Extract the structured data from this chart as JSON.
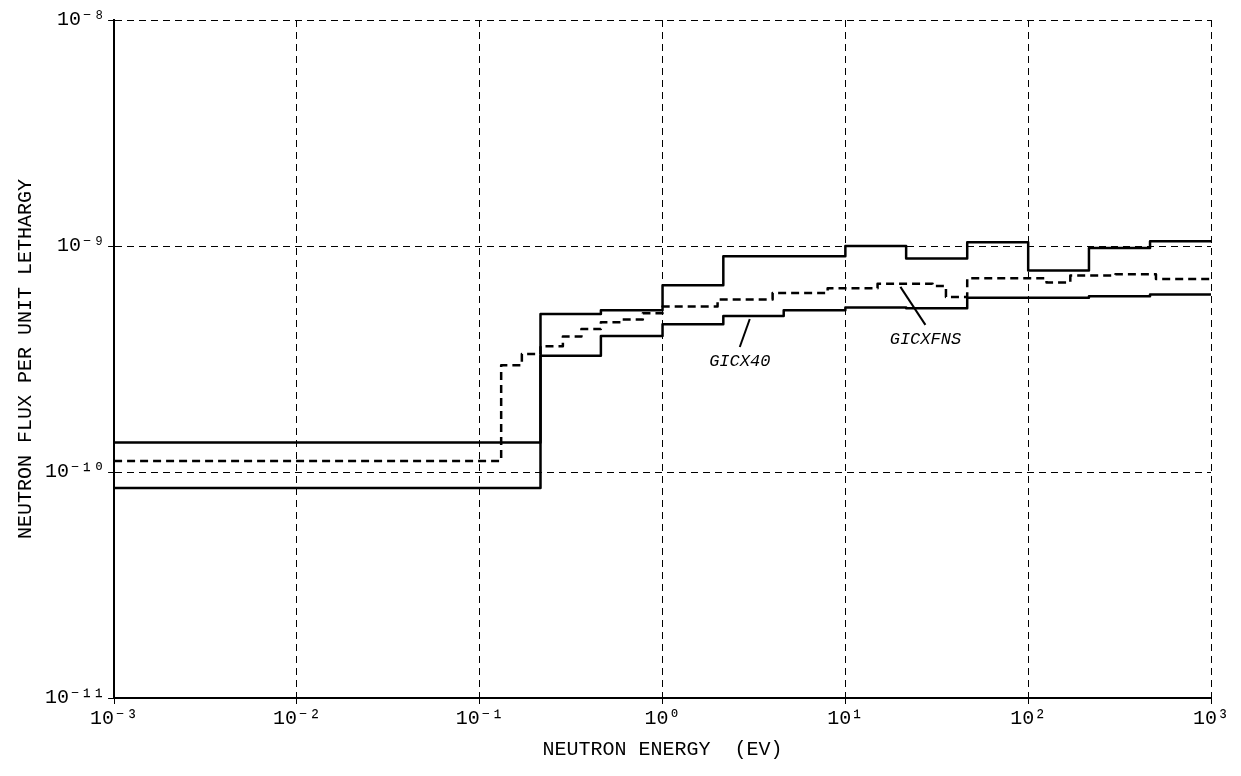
{
  "chart_data": {
    "type": "step",
    "xlabel": "NEUTRON ENERGY  (EV)",
    "ylabel": "NEUTRON FLUX PER UNIT LETHARGY",
    "annotations": [
      {
        "text": "GICX40",
        "x": 3,
        "y": 4.9e-10
      },
      {
        "text": "GICXFNS",
        "x": 20,
        "y": 6.8e-10
      }
    ],
    "log": "xy",
    "grid": true,
    "legend": false,
    "xlim": [
      0.001,
      1000
    ],
    "ylim": [
      1e-11,
      1e-08
    ],
    "xticks": [
      {
        "value": 0.001,
        "label": "10⁻³"
      },
      {
        "value": 0.01,
        "label": "10⁻²"
      },
      {
        "value": 0.1,
        "label": "10⁻¹"
      },
      {
        "value": 1,
        "label": "10⁰"
      },
      {
        "value": 10,
        "label": "10¹"
      },
      {
        "value": 100,
        "label": "10²"
      },
      {
        "value": 1000,
        "label": "10³"
      }
    ],
    "yticks": [
      {
        "value": 1e-11,
        "label": "10⁻¹¹"
      },
      {
        "value": 1e-10,
        "label": "10⁻¹⁰"
      },
      {
        "value": 1e-09,
        "label": "10⁻⁹"
      },
      {
        "value": 1e-08,
        "label": "10⁻⁸"
      }
    ],
    "series": [
      {
        "color": "#000000",
        "line_style": "solid",
        "x": [
          0.001,
          0.215,
          0.46,
          1,
          2.15,
          10,
          21.5,
          46.4,
          100,
          215,
          464,
          1000
        ],
        "values": [
          1.35e-10,
          5e-10,
          5.2e-10,
          6.7e-10,
          9e-10,
          1e-09,
          8.8e-10,
          1.04e-09,
          7.8e-10,
          9.8e-10,
          1.05e-09,
          1.05e-09
        ]
      },
      {
        "color": "#000000",
        "line_style": "solid",
        "x": [
          0.001,
          0.215,
          0.46,
          1,
          2.15,
          4.6,
          10,
          21.5,
          46.4,
          215,
          464,
          1000
        ],
        "values": [
          8.5e-11,
          3.27e-10,
          4e-10,
          4.5e-10,
          4.9e-10,
          5.2e-10,
          5.35e-10,
          5.3e-10,
          5.9e-10,
          6e-10,
          6.1e-10,
          6.1e-10
        ]
      },
      {
        "color": "#000000",
        "line_style": "dashed",
        "x": [
          0.001,
          0.131,
          0.17,
          0.215,
          0.285,
          0.36,
          0.46,
          0.6,
          0.78,
          1,
          2,
          4,
          8,
          15,
          30,
          35.5,
          46.4,
          126,
          170,
          300,
          500,
          1000
        ],
        "values": [
          1.12e-10,
          2.97e-10,
          3.33e-10,
          3.6e-10,
          3.98e-10,
          4.29e-10,
          4.6e-10,
          4.73e-10,
          5.04e-10,
          5.4e-10,
          5.8e-10,
          6.2e-10,
          6.5e-10,
          6.8e-10,
          6.65e-10,
          5.95e-10,
          7.2e-10,
          6.9e-10,
          7.4e-10,
          7.5e-10,
          7.15e-10,
          7.15e-10
        ]
      }
    ]
  }
}
